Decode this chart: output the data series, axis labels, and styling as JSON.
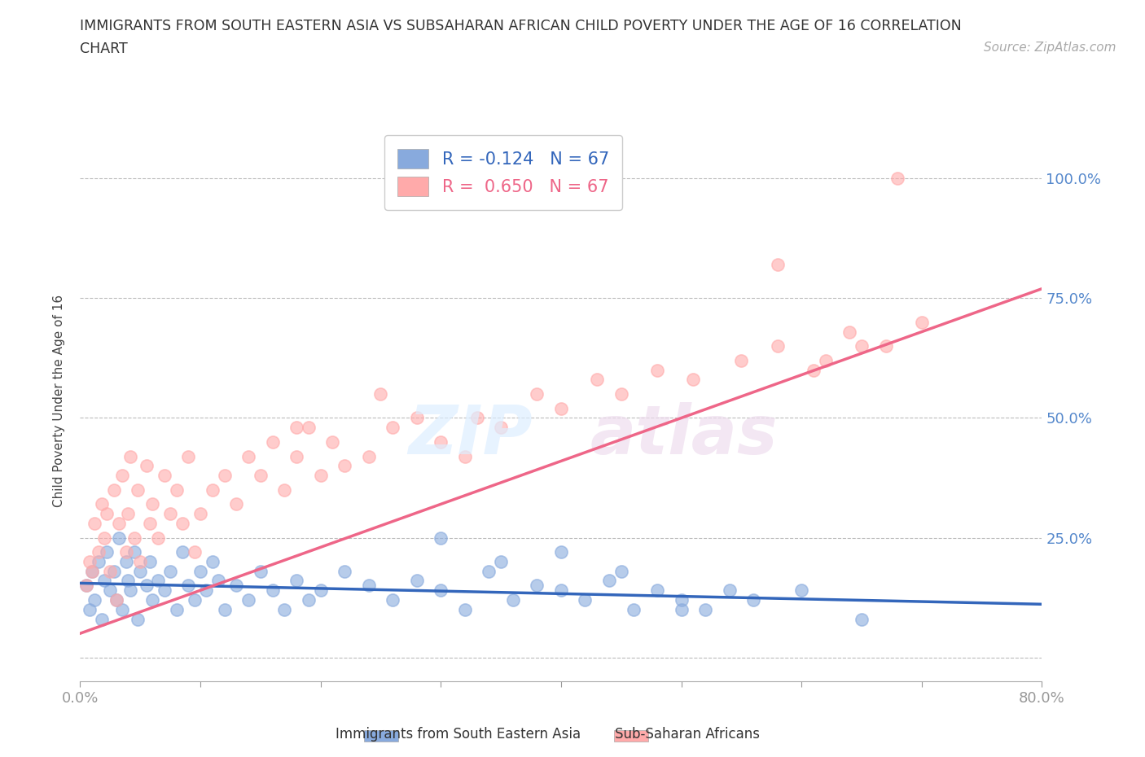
{
  "title_line1": "IMMIGRANTS FROM SOUTH EASTERN ASIA VS SUBSAHARAN AFRICAN CHILD POVERTY UNDER THE AGE OF 16 CORRELATION",
  "title_line2": "CHART",
  "source_text": "Source: ZipAtlas.com",
  "ylabel": "Child Poverty Under the Age of 16",
  "xlim": [
    0.0,
    0.8
  ],
  "ylim": [
    -0.05,
    1.12
  ],
  "xticks": [
    0.0,
    0.1,
    0.2,
    0.3,
    0.4,
    0.5,
    0.6,
    0.7,
    0.8
  ],
  "xticklabels": [
    "0.0%",
    "",
    "",
    "",
    "",
    "",
    "",
    "",
    "80.0%"
  ],
  "ytick_positions": [
    0.0,
    0.25,
    0.5,
    0.75,
    1.0
  ],
  "ytick_labels": [
    "",
    "25.0%",
    "50.0%",
    "75.0%",
    "100.0%"
  ],
  "legend_r1": "R = -0.124   N = 67",
  "legend_r2": "R =  0.650   N = 67",
  "color_blue": "#88AADD",
  "color_pink": "#FFAAAA",
  "color_blue_dark": "#3366BB",
  "color_pink_dark": "#EE6688",
  "trend_blue_slope": -0.055,
  "trend_blue_intercept": 0.155,
  "trend_pink_slope": 0.9,
  "trend_pink_intercept": 0.05,
  "background_color": "#FFFFFF",
  "grid_color": "#BBBBBB",
  "axis_tick_color": "#5588CC",
  "blue_scatter_x": [
    0.005,
    0.008,
    0.01,
    0.012,
    0.015,
    0.018,
    0.02,
    0.022,
    0.025,
    0.028,
    0.03,
    0.032,
    0.035,
    0.038,
    0.04,
    0.042,
    0.045,
    0.048,
    0.05,
    0.055,
    0.058,
    0.06,
    0.065,
    0.07,
    0.075,
    0.08,
    0.085,
    0.09,
    0.095,
    0.1,
    0.105,
    0.11,
    0.115,
    0.12,
    0.13,
    0.14,
    0.15,
    0.16,
    0.17,
    0.18,
    0.19,
    0.2,
    0.22,
    0.24,
    0.26,
    0.28,
    0.3,
    0.32,
    0.34,
    0.36,
    0.38,
    0.4,
    0.42,
    0.44,
    0.46,
    0.48,
    0.5,
    0.52,
    0.54,
    0.56,
    0.3,
    0.35,
    0.4,
    0.45,
    0.5,
    0.6,
    0.65
  ],
  "blue_scatter_y": [
    0.15,
    0.1,
    0.18,
    0.12,
    0.2,
    0.08,
    0.16,
    0.22,
    0.14,
    0.18,
    0.12,
    0.25,
    0.1,
    0.2,
    0.16,
    0.14,
    0.22,
    0.08,
    0.18,
    0.15,
    0.2,
    0.12,
    0.16,
    0.14,
    0.18,
    0.1,
    0.22,
    0.15,
    0.12,
    0.18,
    0.14,
    0.2,
    0.16,
    0.1,
    0.15,
    0.12,
    0.18,
    0.14,
    0.1,
    0.16,
    0.12,
    0.14,
    0.18,
    0.15,
    0.12,
    0.16,
    0.14,
    0.1,
    0.18,
    0.12,
    0.15,
    0.14,
    0.12,
    0.16,
    0.1,
    0.14,
    0.12,
    0.1,
    0.14,
    0.12,
    0.25,
    0.2,
    0.22,
    0.18,
    0.1,
    0.14,
    0.08
  ],
  "pink_scatter_x": [
    0.005,
    0.008,
    0.01,
    0.012,
    0.015,
    0.018,
    0.02,
    0.022,
    0.025,
    0.028,
    0.03,
    0.032,
    0.035,
    0.038,
    0.04,
    0.042,
    0.045,
    0.048,
    0.05,
    0.055,
    0.058,
    0.06,
    0.065,
    0.07,
    0.075,
    0.08,
    0.085,
    0.09,
    0.095,
    0.1,
    0.11,
    0.12,
    0.13,
    0.14,
    0.15,
    0.16,
    0.17,
    0.18,
    0.19,
    0.2,
    0.21,
    0.22,
    0.24,
    0.26,
    0.28,
    0.3,
    0.33,
    0.35,
    0.38,
    0.4,
    0.43,
    0.45,
    0.48,
    0.51,
    0.55,
    0.58,
    0.61,
    0.64,
    0.67,
    0.7,
    0.58,
    0.62,
    0.65,
    0.18,
    0.25,
    0.32,
    0.68
  ],
  "pink_scatter_y": [
    0.15,
    0.2,
    0.18,
    0.28,
    0.22,
    0.32,
    0.25,
    0.3,
    0.18,
    0.35,
    0.12,
    0.28,
    0.38,
    0.22,
    0.3,
    0.42,
    0.25,
    0.35,
    0.2,
    0.4,
    0.28,
    0.32,
    0.25,
    0.38,
    0.3,
    0.35,
    0.28,
    0.42,
    0.22,
    0.3,
    0.35,
    0.38,
    0.32,
    0.42,
    0.38,
    0.45,
    0.35,
    0.42,
    0.48,
    0.38,
    0.45,
    0.4,
    0.42,
    0.48,
    0.5,
    0.45,
    0.5,
    0.48,
    0.55,
    0.52,
    0.58,
    0.55,
    0.6,
    0.58,
    0.62,
    0.65,
    0.6,
    0.68,
    0.65,
    0.7,
    0.82,
    0.62,
    0.65,
    0.48,
    0.55,
    0.42,
    1.0
  ]
}
